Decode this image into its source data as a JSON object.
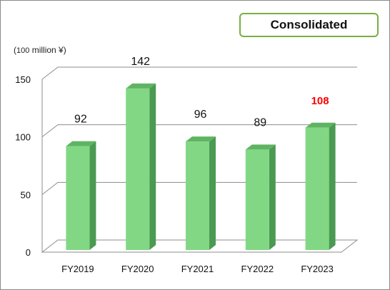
{
  "badge": {
    "label": "Consolidated"
  },
  "unit": {
    "prefix": "(",
    "number": "100",
    "text": " million ¥)"
  },
  "chart_data": {
    "type": "bar",
    "categories": [
      "FY2019",
      "FY2020",
      "FY2021",
      "FY2022",
      "FY2023"
    ],
    "values": [
      92,
      142,
      96,
      89,
      108
    ],
    "value_labels": [
      "92",
      "142",
      "96",
      "89",
      "108"
    ],
    "highlight_index": 4,
    "highlight_color": "#ff0000",
    "ylim": [
      0,
      150
    ],
    "yticks": [
      0,
      50,
      100,
      150
    ],
    "ytick_labels": [
      "0",
      "50",
      "100",
      "150"
    ],
    "grid": true,
    "title": "",
    "xlabel": "",
    "ylabel": "",
    "bar_color": "#82d784",
    "bar_side_color": "#4a9a52",
    "bar_top_color": "#5fb463"
  }
}
